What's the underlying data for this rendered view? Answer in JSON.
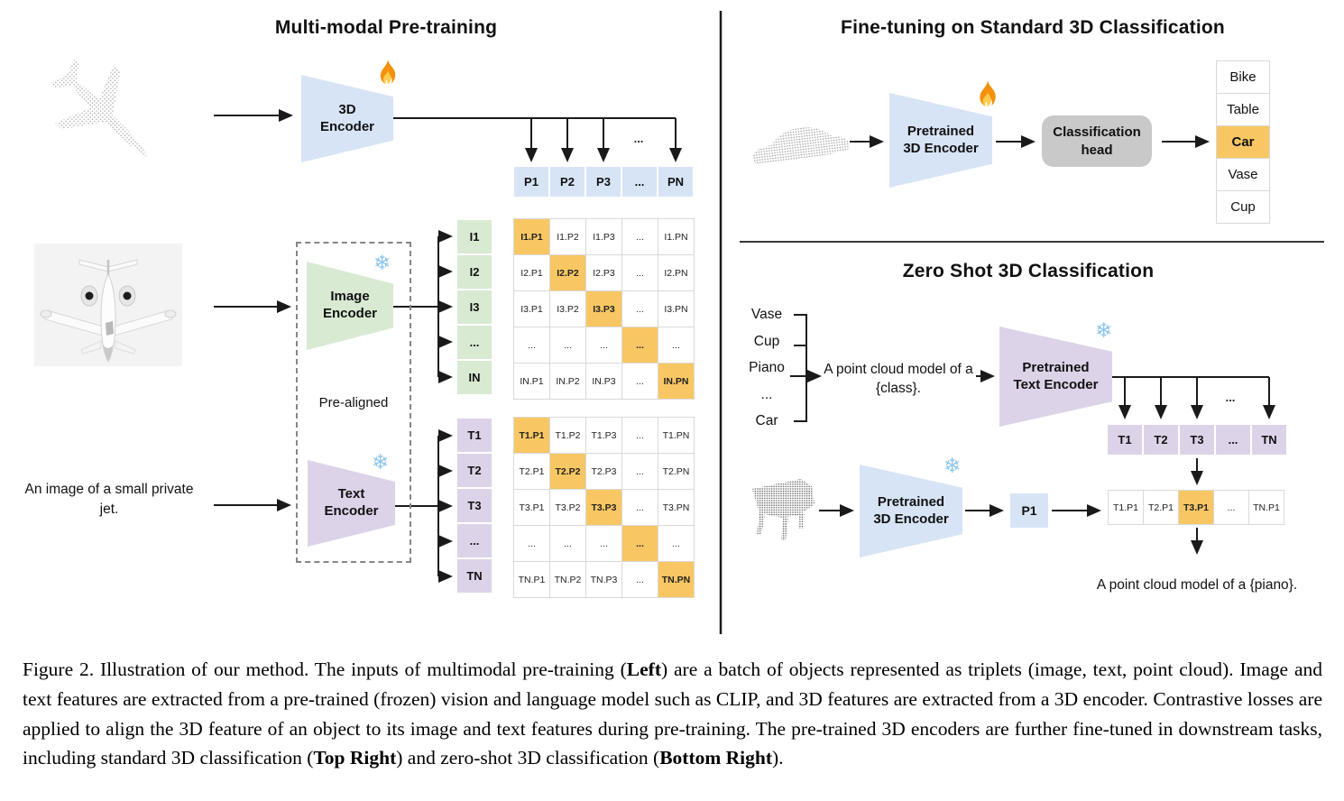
{
  "left_panel": {
    "title": "Multi-modal Pre-training",
    "encoder_3d_label": "3D Encoder",
    "image_encoder_label": "Image Encoder",
    "text_encoder_label": "Text Encoder",
    "pre_aligned_label": "Pre-aligned",
    "text_input": "An image of a small private jet.",
    "branch_dots": "...",
    "p_row": {
      "cells": [
        "P1",
        "P2",
        "P3",
        "...",
        "PN"
      ]
    },
    "image_features": {
      "cells": [
        "I1",
        "I2",
        "I3",
        "...",
        "IN"
      ]
    },
    "text_features": {
      "cells": [
        "T1",
        "T2",
        "T3",
        "...",
        "TN"
      ]
    },
    "image_point_matrix": {
      "highlight": "diagonal",
      "rows": [
        [
          "I1.P1",
          "I1.P2",
          "I1.P3",
          "...",
          "I1.PN"
        ],
        [
          "I2.P1",
          "I2.P2",
          "I2.P3",
          "...",
          "I2.PN"
        ],
        [
          "I3.P1",
          "I3.P2",
          "I3.P3",
          "...",
          "I3.PN"
        ],
        [
          "...",
          "...",
          "...",
          "...",
          "..."
        ],
        [
          "IN.P1",
          "IN.P2",
          "IN.P3",
          "...",
          "IN.PN"
        ]
      ]
    },
    "text_point_matrix": {
      "highlight": "diagonal",
      "rows": [
        [
          "T1.P1",
          "T1.P2",
          "T1.P3",
          "...",
          "T1.PN"
        ],
        [
          "T2.P1",
          "T2.P2",
          "T2.P3",
          "...",
          "T2.PN"
        ],
        [
          "T3.P1",
          "T3.P2",
          "T3.P3",
          "...",
          "T3.PN"
        ],
        [
          "...",
          "...",
          "...",
          "...",
          "..."
        ],
        [
          "TN.P1",
          "TN.P2",
          "TN.P3",
          "...",
          "TN.PN"
        ]
      ]
    }
  },
  "top_right_panel": {
    "title": "Fine-tuning on Standard 3D Classification",
    "encoder_label": "Pretrained 3D Encoder",
    "classification_head_label": "Classification head",
    "class_list": {
      "cells": [
        "Bike",
        "Table",
        "Car",
        "Vase",
        "Cup"
      ],
      "highlight_index": 2
    }
  },
  "bottom_right_panel": {
    "title": "Zero Shot 3D Classification",
    "candidate_classes": {
      "cells": [
        "Vase",
        "Cup",
        "Piano",
        "...",
        "Car"
      ]
    },
    "prompt": "A point cloud model of a {class}.",
    "text_encoder_label": "Pretrained Text Encoder",
    "encoder_3d_label": "Pretrained 3D Encoder",
    "p1_label": "P1",
    "branch_dots": "...",
    "t_row": {
      "cells": [
        "T1",
        "T2",
        "T3",
        "...",
        "TN"
      ]
    },
    "similarity_row": {
      "cells": [
        "T1.P1",
        "T2.P1",
        "T3.P1",
        "...",
        "TN.P1"
      ],
      "highlight_index": 2
    },
    "result_text": "A point cloud model of a {piano}."
  },
  "icons": {
    "snowflake": "❄",
    "fire": "fire-flame"
  },
  "colors": {
    "feature_blue": "#d7e4f6",
    "feature_green": "#d9ead3",
    "feature_purple": "#ddd3e9",
    "highlight_orange": "#f8c763",
    "head_gray": "#c9c9c9",
    "grid_border": "#d9d9d9",
    "snowflake_blue": "#8fc7ef"
  },
  "caption": {
    "segments": [
      "Figure 2. Illustration of our method.  The inputs of multimodal pre-training (",
      "Left",
      ") are a batch of objects represented as triplets (image, text, point cloud).  Image and text features are extracted from a pre-trained (frozen) vision and language model such as CLIP, and 3D features are extracted from a 3D encoder.  Contrastive losses are applied to align the 3D feature of an object to its image and text features during pre-training.  The pre-trained 3D encoders are further fine-tuned in downstream tasks, including standard 3D classification (",
      "Top Right",
      ") and zero-shot 3D classification (",
      "Bottom Right",
      ")."
    ]
  }
}
